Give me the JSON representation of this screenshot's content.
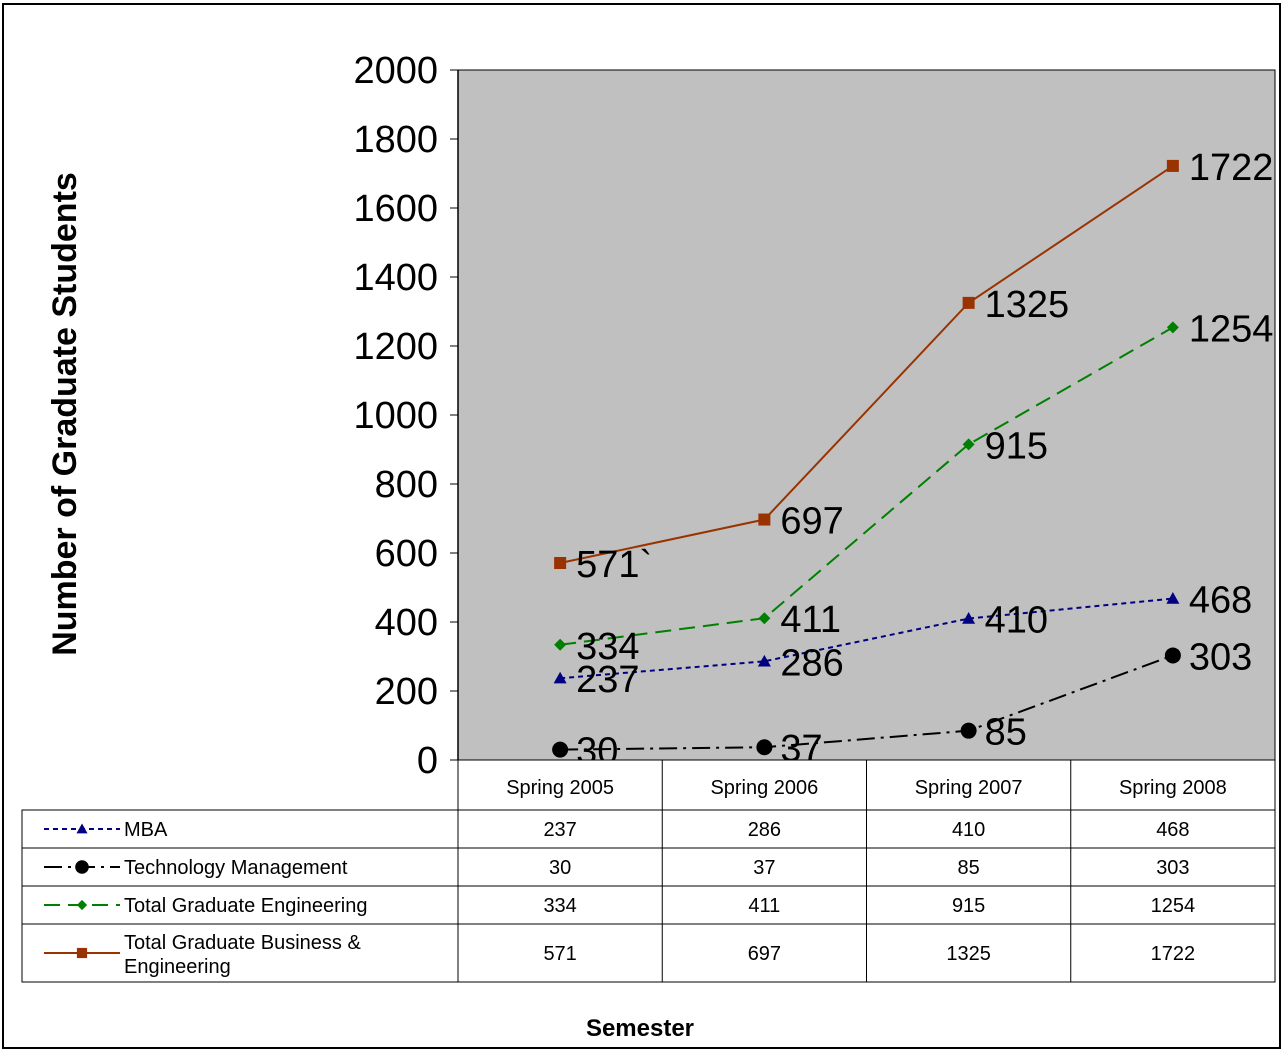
{
  "chart_data": {
    "type": "line",
    "categories": [
      "Spring 2005",
      "Spring 2006",
      "Spring 2007",
      "Spring 2008"
    ],
    "ylabel": "Number of Graduate Students",
    "xlabel": "Semester",
    "ylim": [
      0,
      2000
    ],
    "yticks": [
      "0",
      "200",
      "400",
      "600",
      "800",
      "1000",
      "1200",
      "1400",
      "1600",
      "1800",
      "2000"
    ],
    "grid": false,
    "legend": "data-table-left",
    "plot_background": "#C0C0C0",
    "series": [
      {
        "name": "MBA",
        "values": [
          237,
          286,
          410,
          468
        ],
        "labels": [
          "237",
          "286",
          "410",
          "468"
        ],
        "table": [
          "237",
          "286",
          "410",
          "468"
        ],
        "color": "#000080",
        "marker": "triangle",
        "dash": "dotted"
      },
      {
        "name": "Technology Management",
        "values": [
          30,
          37,
          85,
          303
        ],
        "labels": [
          "30",
          "37",
          "85",
          "303"
        ],
        "table": [
          "30",
          "37",
          "85",
          "303"
        ],
        "color": "#000000",
        "marker": "circle",
        "dash": "dashdot"
      },
      {
        "name": "Total Graduate Engineering",
        "values": [
          334,
          411,
          915,
          1254
        ],
        "labels": [
          "334",
          "411",
          "915",
          "1254"
        ],
        "table": [
          "334",
          "411",
          "915",
          "1254"
        ],
        "color": "#008000",
        "marker": "diamond",
        "dash": "dashed"
      },
      {
        "name": "Total Graduate Business & Engineering",
        "name_lines": [
          "Total Graduate Business &",
          "Engineering"
        ],
        "values": [
          571,
          697,
          1325,
          1722
        ],
        "labels": [
          "571`",
          "697",
          "1325",
          "1722"
        ],
        "table": [
          "571",
          "697",
          "1325",
          "1722"
        ],
        "color": "#993300",
        "marker": "square",
        "dash": "solid"
      }
    ]
  }
}
